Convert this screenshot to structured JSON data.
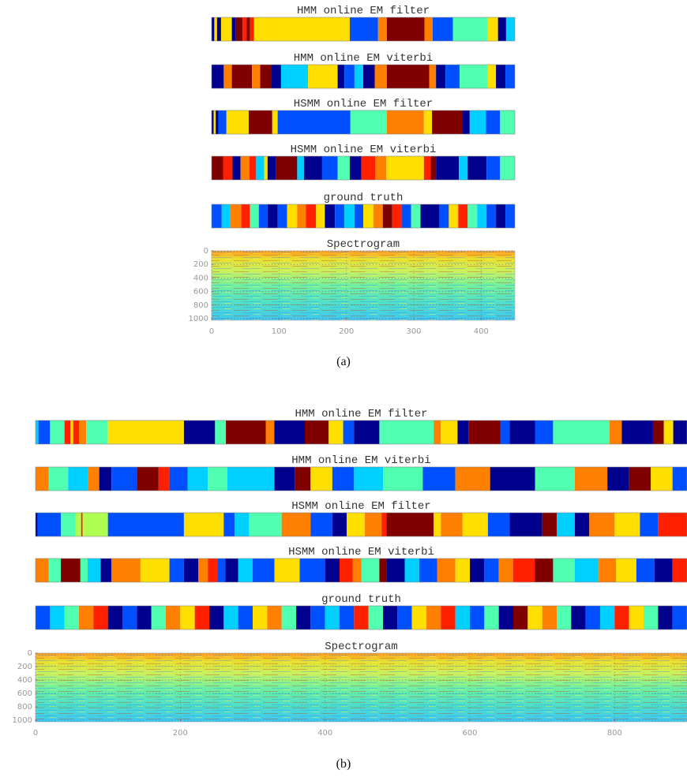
{
  "panels": [
    {
      "label": "(a)",
      "rows": [
        {
          "title": "HMM online EM filter",
          "boundaries": [
            0,
            4,
            8,
            14,
            30,
            36,
            46,
            52,
            57,
            63,
            205,
            247,
            260,
            316,
            328,
            358,
            410,
            425,
            437,
            450
          ],
          "colors": [
            "#00008f",
            "#ffdf00",
            "#00008f",
            "#ffdf00",
            "#00008f",
            "#800000",
            "#ff2000",
            "#800000",
            "#ff2000",
            "#ffdf00",
            "#0050ff",
            "#ff7f00",
            "#800000",
            "#ff7f00",
            "#0050ff",
            "#50ffaf",
            "#ffdf00",
            "#00008f",
            "#00d0ff"
          ]
        },
        {
          "title": "HMM online EM viterbi",
          "boundaries": [
            0,
            18,
            30,
            60,
            72,
            88,
            103,
            143,
            187,
            197,
            212,
            225,
            242,
            260,
            323,
            333,
            347,
            368,
            410,
            422,
            436,
            450
          ],
          "colors": [
            "#00008f",
            "#ff7f00",
            "#800000",
            "#ff7f00",
            "#800000",
            "#00008f",
            "#00d0ff",
            "#ffdf00",
            "#00008f",
            "#0050ff",
            "#00d0ff",
            "#00008f",
            "#ff7f00",
            "#800000",
            "#ff7f00",
            "#00008f",
            "#0050ff",
            "#50ffaf",
            "#ffdf00",
            "#00008f",
            "#0050ff"
          ]
        },
        {
          "title": "HSMM online EM filter",
          "boundaries": [
            0,
            3,
            6,
            10,
            22,
            55,
            90,
            98,
            206,
            260,
            315,
            327,
            372,
            383,
            407,
            428,
            450
          ],
          "colors": [
            "#00008f",
            "#ffdf00",
            "#00008f",
            "#0050ff",
            "#ffdf00",
            "#800000",
            "#ffdf00",
            "#0050ff",
            "#50ffaf",
            "#ff7f00",
            "#ffdf00",
            "#800000",
            "#00008f",
            "#00d0ff",
            "#0050ff",
            "#50ffaf"
          ]
        },
        {
          "title": "HSMM online EM viterbi",
          "boundaries": [
            0,
            17,
            31,
            43,
            56,
            66,
            78,
            83,
            95,
            127,
            137,
            164,
            187,
            205,
            222,
            243,
            259,
            315,
            325,
            333,
            367,
            380,
            408,
            428,
            450
          ],
          "colors": [
            "#800000",
            "#ff2000",
            "#00008f",
            "#ff7f00",
            "#ff2000",
            "#00d0ff",
            "#ffdf00",
            "#00008f",
            "#800000",
            "#00d0ff",
            "#00008f",
            "#0050ff",
            "#50ffaf",
            "#00008f",
            "#ff2000",
            "#ff7f00",
            "#ffdf00",
            "#ff2000",
            "#800000",
            "#00008f",
            "#00d0ff",
            "#00008f",
            "#0050ff",
            "#50ffaf"
          ]
        },
        {
          "title": "ground truth",
          "boundaries": [
            0,
            15,
            28,
            44,
            57,
            70,
            83,
            98,
            112,
            127,
            140,
            155,
            168,
            183,
            197,
            212,
            225,
            240,
            254,
            268,
            282,
            296,
            310,
            324,
            338,
            352,
            366,
            380,
            394,
            408,
            422,
            436,
            450
          ],
          "colors": [
            "#0050ff",
            "#00d0ff",
            "#ff7f00",
            "#ff2000",
            "#50ffaf",
            "#0050ff",
            "#00008f",
            "#0050ff",
            "#ffdf00",
            "#ff7f00",
            "#ff2000",
            "#ffdf00",
            "#00008f",
            "#0050ff",
            "#00d0ff",
            "#0050ff",
            "#ffdf00",
            "#ff7f00",
            "#800000",
            "#ff2000",
            "#0050ff",
            "#50ffaf",
            "#00008f",
            "#00008f",
            "#0050ff",
            "#ffdf00",
            "#ff2000",
            "#50ffaf",
            "#00d0ff",
            "#0050ff",
            "#00008f",
            "#0050ff"
          ]
        }
      ],
      "spectrogram": {
        "title": "Spectrogram",
        "xlim": [
          0,
          450
        ],
        "xticks": [
          0,
          100,
          200,
          300,
          400
        ],
        "ylim": [
          0,
          1024
        ],
        "yticks": [
          0,
          200,
          400,
          600,
          800,
          1000
        ]
      }
    },
    {
      "label": "(b)",
      "rows": [
        {
          "title": "HMM online EM filter",
          "boundaries": [
            0,
            4,
            20,
            40,
            48,
            52,
            60,
            70,
            100,
            205,
            248,
            263,
            318,
            330,
            372,
            405,
            425,
            440,
            475,
            550,
            560,
            583,
            598,
            642,
            655,
            690,
            715,
            793,
            810,
            853,
            868,
            881,
            900
          ],
          "colors": [
            "#00d0ff",
            "#0050ff",
            "#50ffaf",
            "#ff2000",
            "#ffdf00",
            "#ff2000",
            "#ff7f00",
            "#50ffaf",
            "#ffdf00",
            "#00008f",
            "#50ffaf",
            "#800000",
            "#ff7f00",
            "#00008f",
            "#800000",
            "#ffdf00",
            "#0050ff",
            "#00008f",
            "#50ffaf",
            "#ff7f00",
            "#ffdf00",
            "#00008f",
            "#800000",
            "#0050ff",
            "#00008f",
            "#0050ff",
            "#50ffaf",
            "#ff7f00",
            "#00008f",
            "#800000",
            "#ffdf00",
            "#00008f"
          ]
        },
        {
          "title": "HMM online EM viterbi",
          "boundaries": [
            0,
            18,
            45,
            73,
            88,
            105,
            140,
            170,
            185,
            210,
            238,
            265,
            330,
            358,
            380,
            410,
            440,
            480,
            535,
            580,
            628,
            690,
            745,
            790,
            820,
            850,
            880,
            900
          ],
          "colors": [
            "#ff7f00",
            "#50ffaf",
            "#00d0ff",
            "#ff7f00",
            "#00008f",
            "#0050ff",
            "#800000",
            "#ff2000",
            "#0050ff",
            "#00d0ff",
            "#50ffaf",
            "#00d0ff",
            "#00008f",
            "#800000",
            "#ffdf00",
            "#0050ff",
            "#00d0ff",
            "#50ffaf",
            "#0050ff",
            "#ff7f00",
            "#00008f",
            "#50ffaf",
            "#ff7f00",
            "#00008f",
            "#800000",
            "#ffdf00",
            "#0050ff"
          ]
        },
        {
          "title": "HSMM online EM filter",
          "boundaries": [
            0,
            3,
            35,
            55,
            63,
            65,
            100,
            205,
            260,
            275,
            295,
            340,
            380,
            410,
            430,
            455,
            478,
            485,
            550,
            560,
            590,
            625,
            655,
            700,
            720,
            745,
            765,
            800,
            835,
            860,
            900
          ],
          "colors": [
            "#00008f",
            "#0050ff",
            "#50ffaf",
            "#afff50",
            "#ff2000",
            "#afff50",
            "#0050ff",
            "#ffdf00",
            "#0050ff",
            "#00d0ff",
            "#50ffaf",
            "#ff7f00",
            "#0050ff",
            "#00008f",
            "#ffdf00",
            "#ff7f00",
            "#ff2000",
            "#800000",
            "#ffdf00",
            "#ff7f00",
            "#ffdf00",
            "#0050ff",
            "#00008f",
            "#800000",
            "#00d0ff",
            "#00008f",
            "#ff7f00",
            "#ffdf00",
            "#0050ff",
            "#ff2000"
          ]
        },
        {
          "title": "HSMM online EM viterbi",
          "boundaries": [
            0,
            18,
            35,
            62,
            72,
            90,
            105,
            145,
            185,
            205,
            225,
            238,
            252,
            262,
            280,
            300,
            330,
            365,
            400,
            420,
            438,
            450,
            475,
            485,
            510,
            530,
            555,
            580,
            600,
            620,
            640,
            660,
            690,
            715,
            745,
            778,
            802,
            830,
            855,
            880,
            900
          ],
          "colors": [
            "#ff7f00",
            "#50ffaf",
            "#800000",
            "#50ffaf",
            "#00d0ff",
            "#00008f",
            "#ff7f00",
            "#ffdf00",
            "#0050ff",
            "#00008f",
            "#ff7f00",
            "#ff2000",
            "#0050ff",
            "#00008f",
            "#00d0ff",
            "#0050ff",
            "#ffdf00",
            "#0050ff",
            "#00008f",
            "#ff2000",
            "#ff7f00",
            "#50ffaf",
            "#800000",
            "#00008f",
            "#00d0ff",
            "#0050ff",
            "#ff7f00",
            "#ffdf00",
            "#00008f",
            "#0050ff",
            "#ff7f00",
            "#ff2000",
            "#800000",
            "#50ffaf",
            "#00d0ff",
            "#ff7f00",
            "#ffdf00",
            "#0050ff",
            "#00008f",
            "#ff2000"
          ]
        },
        {
          "title": "ground truth",
          "boundaries": [
            0,
            20,
            40,
            60,
            80,
            100,
            120,
            140,
            160,
            180,
            200,
            220,
            240,
            260,
            280,
            300,
            320,
            340,
            360,
            380,
            400,
            420,
            440,
            460,
            480,
            500,
            520,
            540,
            560,
            580,
            600,
            620,
            640,
            660,
            680,
            700,
            720,
            740,
            760,
            780,
            800,
            820,
            840,
            860,
            880,
            900
          ],
          "colors": [
            "#0050ff",
            "#00d0ff",
            "#50ffaf",
            "#ff7f00",
            "#ff2000",
            "#00008f",
            "#0050ff",
            "#00008f",
            "#50ffaf",
            "#ff7f00",
            "#ffdf00",
            "#ff2000",
            "#00008f",
            "#00d0ff",
            "#0050ff",
            "#ffdf00",
            "#ff7f00",
            "#50ffaf",
            "#00008f",
            "#0050ff",
            "#00d0ff",
            "#0050ff",
            "#ff2000",
            "#50ffaf",
            "#00008f",
            "#0050ff",
            "#ffdf00",
            "#ff7f00",
            "#ff2000",
            "#00d0ff",
            "#0050ff",
            "#50ffaf",
            "#00008f",
            "#800000",
            "#ffdf00",
            "#ff7f00",
            "#50ffaf",
            "#00008f",
            "#0050ff",
            "#00d0ff",
            "#ff2000",
            "#ffdf00",
            "#50ffaf",
            "#00008f",
            "#0050ff"
          ]
        }
      ],
      "spectrogram": {
        "title": "Spectrogram",
        "xlim": [
          0,
          900
        ],
        "xticks": [
          0,
          200,
          400,
          600,
          800
        ],
        "ylim": [
          0,
          1024
        ],
        "yticks": [
          0,
          200,
          400,
          600,
          800,
          1000
        ]
      }
    }
  ]
}
